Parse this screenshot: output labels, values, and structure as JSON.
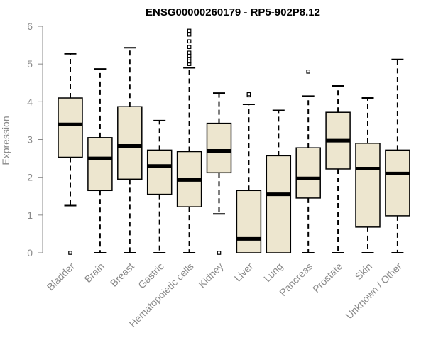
{
  "chart_data": {
    "type": "boxplot",
    "title": "ENSG00000260179 - RP5-902P8.12",
    "xlabel": "",
    "ylabel": "Expression",
    "ylim": [
      0,
      6
    ],
    "yticks": [
      "0",
      "1",
      "2",
      "3",
      "4",
      "5",
      "6"
    ],
    "grid": false,
    "colors": {
      "box_fill": "#ede6cf",
      "box_stroke": "#000000",
      "axis": "#8a8a8a"
    },
    "categories": [
      "Bladder",
      "Brain",
      "Breast",
      "Gastric",
      "Hematopoietic cells",
      "Kidney",
      "Liver",
      "Lung",
      "Pancreas",
      "Prostate",
      "Skin",
      "Unknown / Other"
    ],
    "boxes": [
      {
        "name": "Bladder",
        "whisker_low": 1.25,
        "q1": 2.53,
        "median": 3.4,
        "q3": 4.1,
        "whisker_high": 5.27,
        "outliers": [
          0.0
        ]
      },
      {
        "name": "Brain",
        "whisker_low": 0.0,
        "q1": 1.65,
        "median": 2.5,
        "q3": 3.05,
        "whisker_high": 4.87,
        "outliers": []
      },
      {
        "name": "Breast",
        "whisker_low": 0.0,
        "q1": 1.95,
        "median": 2.83,
        "q3": 3.87,
        "whisker_high": 5.43,
        "outliers": []
      },
      {
        "name": "Gastric",
        "whisker_low": 0.0,
        "q1": 1.55,
        "median": 2.3,
        "q3": 2.72,
        "whisker_high": 3.5,
        "outliers": []
      },
      {
        "name": "Hematopoietic cells",
        "whisker_low": 0.0,
        "q1": 1.22,
        "median": 1.93,
        "q3": 2.68,
        "whisker_high": 4.9,
        "outliers": [
          5.0,
          5.07,
          5.15,
          5.22,
          5.3,
          5.45,
          5.6,
          5.78,
          5.88
        ]
      },
      {
        "name": "Kidney",
        "whisker_low": 1.03,
        "q1": 2.12,
        "median": 2.7,
        "q3": 3.43,
        "whisker_high": 4.23,
        "outliers": [
          0.0
        ]
      },
      {
        "name": "Liver",
        "whisker_low": 0.0,
        "q1": 0.0,
        "median": 0.37,
        "q3": 1.65,
        "whisker_high": 3.93,
        "outliers": [
          4.17,
          4.2
        ]
      },
      {
        "name": "Lung",
        "whisker_low": 0.0,
        "q1": 0.0,
        "median": 1.55,
        "q3": 2.57,
        "whisker_high": 3.77,
        "outliers": []
      },
      {
        "name": "Pancreas",
        "whisker_low": 0.0,
        "q1": 1.45,
        "median": 1.97,
        "q3": 2.78,
        "whisker_high": 4.15,
        "outliers": [
          4.8
        ]
      },
      {
        "name": "Prostate",
        "whisker_low": 0.0,
        "q1": 2.22,
        "median": 2.97,
        "q3": 3.72,
        "whisker_high": 4.42,
        "outliers": []
      },
      {
        "name": "Skin",
        "whisker_low": 0.0,
        "q1": 0.68,
        "median": 2.23,
        "q3": 2.9,
        "whisker_high": 4.1,
        "outliers": []
      },
      {
        "name": "Unknown / Other",
        "whisker_low": 0.0,
        "q1": 0.98,
        "median": 2.1,
        "q3": 2.72,
        "whisker_high": 5.12,
        "outliers": []
      }
    ]
  }
}
